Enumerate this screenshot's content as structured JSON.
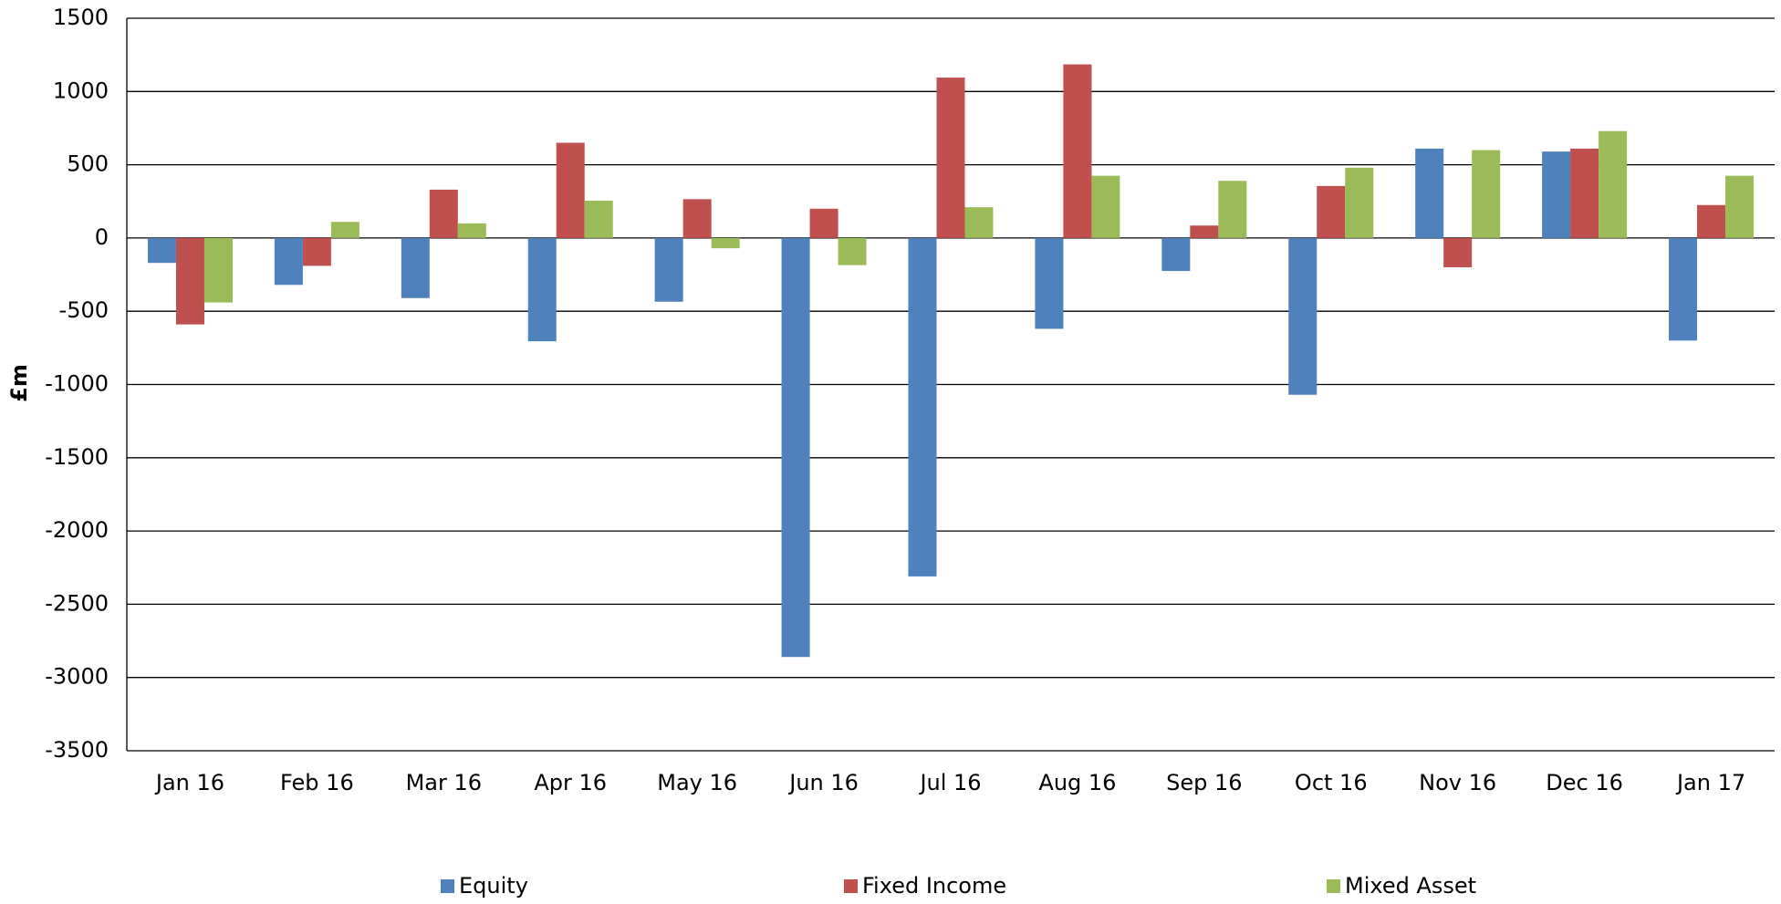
{
  "chart_data": {
    "type": "bar",
    "y_label": "£m",
    "categories": [
      "Jan 16",
      "Feb 16",
      "Mar 16",
      "Apr 16",
      "May 16",
      "Jun 16",
      "Jul 16",
      "Aug 16",
      "Sep 16",
      "Oct 16",
      "Nov 16",
      "Dec 16",
      "Jan 17"
    ],
    "series": [
      {
        "name": "Equity",
        "color": "#4f81bd",
        "values": [
          -170,
          -320,
          -410,
          -705,
          -435,
          -2860,
          -2310,
          -620,
          -225,
          -1070,
          610,
          590,
          -700
        ]
      },
      {
        "name": "Fixed Income",
        "color": "#c0504d",
        "values": [
          -590,
          -190,
          330,
          650,
          265,
          200,
          1095,
          1185,
          85,
          355,
          -200,
          610,
          225
        ]
      },
      {
        "name": "Mixed Asset",
        "color": "#9bbb59",
        "values": [
          -440,
          110,
          100,
          255,
          -70,
          -185,
          210,
          425,
          390,
          480,
          600,
          730,
          425
        ]
      }
    ],
    "ylim": [
      -3500,
      1500
    ],
    "yticks": [
      -3500,
      -3000,
      -2500,
      -2000,
      -1500,
      -1000,
      -500,
      0,
      500,
      1000,
      1500
    ],
    "grid": true,
    "legend": "bottom"
  }
}
